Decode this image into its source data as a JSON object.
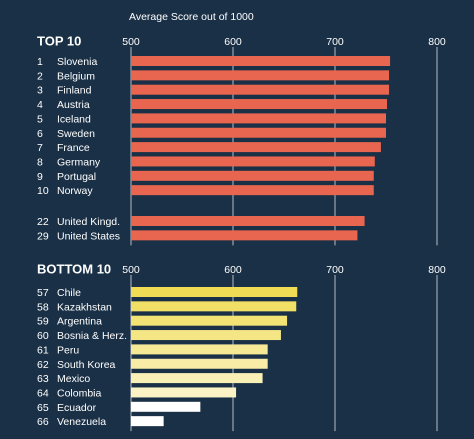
{
  "chart_data": {
    "type": "bar",
    "title": "Average Score out of 1000",
    "colors": {
      "background": "#1a3046",
      "top_bar": "#e8654f",
      "bottom_gradient": [
        "#f0dc55",
        "#fbf3c6"
      ],
      "bottom_low": "#ffffff",
      "gridline": "#ffffff"
    },
    "panels": [
      {
        "label": "TOP 10",
        "xlim": [
          500,
          800
        ],
        "ticks": [
          500,
          600,
          700,
          800
        ],
        "grid": true,
        "groups": [
          {
            "rows": [
              {
                "rank": "1",
                "country": "Slovenia",
                "value": 754
              },
              {
                "rank": "2",
                "country": "Belgium",
                "value": 753
              },
              {
                "rank": "3",
                "country": "Finland",
                "value": 753
              },
              {
                "rank": "4",
                "country": "Austria",
                "value": 751
              },
              {
                "rank": "5",
                "country": "Iceland",
                "value": 750
              },
              {
                "rank": "6",
                "country": "Sweden",
                "value": 750
              },
              {
                "rank": "7",
                "country": "France",
                "value": 745
              },
              {
                "rank": "8",
                "country": "Germany",
                "value": 739
              },
              {
                "rank": "9",
                "country": "Portugal",
                "value": 738
              },
              {
                "rank": "10",
                "country": "Norway",
                "value": 738
              }
            ]
          },
          {
            "rows": [
              {
                "rank": "22",
                "country": "United Kingd.",
                "value": 729
              },
              {
                "rank": "29",
                "country": "United States",
                "value": 722
              }
            ]
          }
        ]
      },
      {
        "label": "BOTTOM 10",
        "xlim": [
          500,
          800
        ],
        "ticks": [
          500,
          600,
          700,
          800
        ],
        "grid": true,
        "groups": [
          {
            "rows": [
              {
                "rank": "57",
                "country": "Chile",
                "value": 663
              },
              {
                "rank": "58",
                "country": "Kazakhstan",
                "value": 662
              },
              {
                "rank": "59",
                "country": "Argentina",
                "value": 653
              },
              {
                "rank": "60",
                "country": "Bosnia & Herz.",
                "value": 647
              },
              {
                "rank": "61",
                "country": "Peru",
                "value": 634
              },
              {
                "rank": "62",
                "country": "South Korea",
                "value": 634
              },
              {
                "rank": "63",
                "country": "Mexico",
                "value": 629
              },
              {
                "rank": "64",
                "country": "Colombia",
                "value": 603
              },
              {
                "rank": "65",
                "country": "Ecuador",
                "value": 568
              },
              {
                "rank": "66",
                "country": "Venezuela",
                "value": 532
              }
            ]
          }
        ]
      }
    ]
  }
}
